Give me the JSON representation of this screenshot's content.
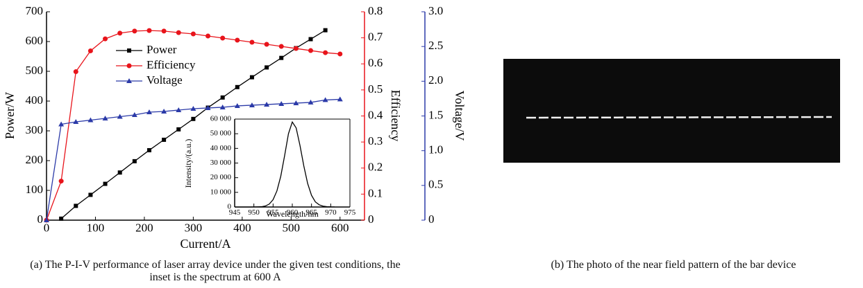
{
  "chart_data": [
    {
      "type": "line",
      "x_label": "Current/A",
      "y_label": "Power/W",
      "y2_label": "Efficiency",
      "y3_label": "Voltage/V",
      "x": [
        0,
        30,
        60,
        90,
        120,
        150,
        180,
        210,
        240,
        270,
        300,
        330,
        360,
        390,
        420,
        450,
        480,
        510,
        540,
        570,
        600
      ],
      "xlim": [
        0,
        650
      ],
      "xticks": [
        0,
        100,
        200,
        300,
        400,
        500,
        600
      ],
      "ylim": [
        0,
        700
      ],
      "yticks": [
        0,
        100,
        200,
        300,
        400,
        500,
        600,
        700
      ],
      "y2lim": [
        0,
        0.8
      ],
      "y2ticks": [
        0,
        0.1,
        0.2,
        0.3,
        0.4,
        0.5,
        0.6,
        0.7,
        0.8
      ],
      "y3lim": [
        0,
        3
      ],
      "y3ticks": [
        0,
        0.5,
        {
          "value": 1,
          "label": "1.0"
        },
        1.5,
        {
          "value": 2,
          "label": "2.0"
        },
        2.5,
        {
          "value": 3,
          "label": "3.0"
        }
      ],
      "legend": "upper left",
      "series": [
        {
          "name": "Power",
          "color": "#000000",
          "marker": "square",
          "axis": "y",
          "values": [
            null,
            5,
            48,
            85,
            122,
            160,
            198,
            235,
            270,
            305,
            340,
            378,
            412,
            447,
            480,
            513,
            545,
            578,
            608,
            638,
            null
          ]
        },
        {
          "name": "Efficiency",
          "color": "#e8141b",
          "marker": "circle",
          "axis": "y2",
          "values": [
            0,
            0.15,
            0.57,
            0.65,
            0.696,
            0.718,
            0.726,
            0.728,
            0.726,
            0.72,
            0.715,
            0.707,
            0.699,
            0.691,
            0.683,
            0.675,
            0.667,
            0.659,
            0.651,
            0.643,
            0.638
          ]
        },
        {
          "name": "Voltage",
          "color": "#2b3aa8",
          "marker": "triangle",
          "axis": "y3",
          "values": [
            0,
            1.38,
            1.415,
            1.44,
            1.465,
            1.49,
            1.515,
            1.555,
            1.565,
            1.585,
            1.605,
            1.615,
            1.625,
            1.645,
            1.655,
            1.665,
            1.675,
            1.685,
            1.695,
            1.73,
            1.74
          ]
        }
      ],
      "caption": "(a) The P-I-V performance of laser array device under the given test conditions, the inset is the spectrum at 600 A"
    },
    {
      "type": "line",
      "x_label": "Wavelength/nm",
      "y_label": "Intensity/(a.u.)",
      "x": [
        945,
        946,
        947,
        948,
        949,
        950,
        951,
        952,
        953,
        954,
        955,
        956,
        957,
        958,
        959,
        960,
        961,
        962,
        963,
        964,
        965,
        966,
        967,
        968,
        969,
        970,
        971
      ],
      "xlim": [
        945,
        975
      ],
      "xticks": [
        945,
        950,
        955,
        960,
        965,
        970,
        975
      ],
      "ylim": [
        0,
        60000
      ],
      "yticks": [
        0,
        {
          "value": 10000,
          "label": "10 000"
        },
        {
          "value": 20000,
          "label": "20 000"
        },
        {
          "value": 30000,
          "label": "30 000"
        },
        {
          "value": 40000,
          "label": "40 000"
        },
        {
          "value": 50000,
          "label": "50 000"
        },
        {
          "value": 60000,
          "label": "60 000"
        }
      ],
      "series": [
        {
          "color": "#000000",
          "values": [
            0,
            0,
            0,
            0,
            0,
            50,
            100,
            200,
            700,
            2000,
            5000,
            11000,
            21000,
            35000,
            50000,
            58000,
            54000,
            42000,
            28000,
            16000,
            8000,
            3500,
            1500,
            600,
            250,
            100,
            50
          ]
        }
      ]
    }
  ],
  "photo": {
    "caption": "(b) The photo of the near field pattern of the bar device"
  }
}
